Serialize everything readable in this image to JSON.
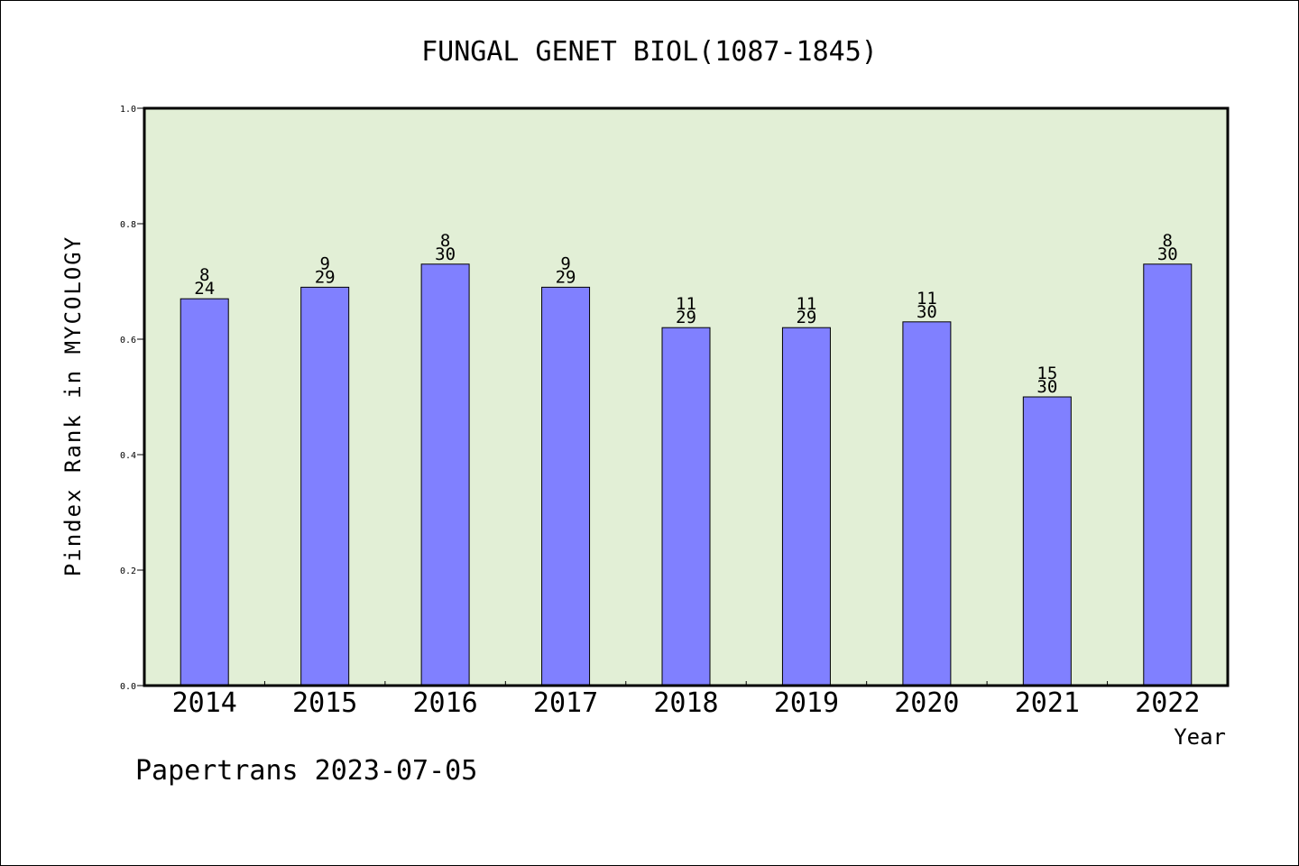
{
  "chart_data": {
    "type": "bar",
    "title": "FUNGAL GENET BIOL(1087-1845)",
    "xlabel": "Year",
    "ylabel": "Pindex Rank in MYCOLOGY",
    "footer": "Papertrans 2023-07-05",
    "categories": [
      "2014",
      "2015",
      "2016",
      "2017",
      "2018",
      "2019",
      "2020",
      "2021",
      "2022"
    ],
    "values": [
      0.67,
      0.69,
      0.73,
      0.69,
      0.62,
      0.62,
      0.63,
      0.5,
      0.73
    ],
    "rank": [
      "8",
      "9",
      "8",
      "9",
      "11",
      "11",
      "11",
      "15",
      "8"
    ],
    "total": [
      "24",
      "29",
      "30",
      "29",
      "29",
      "29",
      "30",
      "30",
      "30"
    ],
    "ylim": [
      0,
      1.0
    ],
    "yticks": [
      "0.0",
      "0.2",
      "0.4",
      "0.6",
      "0.8",
      "1.0"
    ],
    "grid": false,
    "legend": "none",
    "colors": {
      "plot_background": "#e2efd6",
      "bar_fill": "#8080ff",
      "bar_stroke": "#000000"
    }
  }
}
